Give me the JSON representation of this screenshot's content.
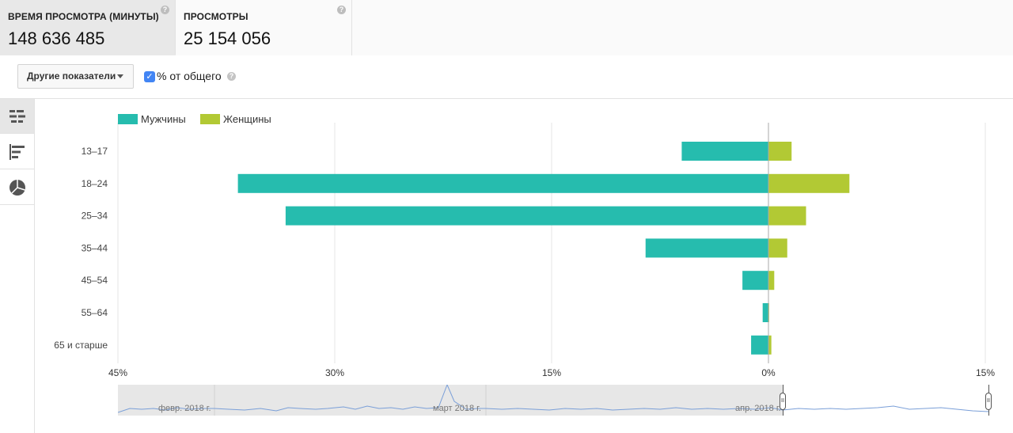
{
  "metrics": [
    {
      "label": "ВРЕМЯ ПРОСМОТРА (МИНУТЫ)",
      "value": "148 636 485",
      "help": "?"
    },
    {
      "label": "ПРОСМОТРЫ",
      "value": "25 154 056",
      "help": "?"
    }
  ],
  "toolbar": {
    "dropdown_label": "Другие показатели",
    "percent_checkbox_checked": true,
    "percent_label": "% от общего",
    "help": "?"
  },
  "switcher": {
    "items": [
      {
        "icon": "population-pyramid-icon",
        "active": true
      },
      {
        "icon": "horizontal-bar-icon",
        "active": false
      },
      {
        "icon": "pie-chart-icon",
        "active": false
      }
    ]
  },
  "colors": {
    "male": "#26bcae",
    "female": "#b2c934",
    "accent": "#4285f4"
  },
  "chart_data": {
    "type": "bar",
    "orientation": "horizontal",
    "categories": [
      "13–17",
      "18–24",
      "25–34",
      "35–44",
      "45–54",
      "55–64",
      "65 и старше"
    ],
    "series": [
      {
        "name": "Мужчины",
        "color": "#26bcae",
        "values": [
          -6.0,
          -36.7,
          -33.4,
          -8.5,
          -1.8,
          -0.4,
          -1.2
        ]
      },
      {
        "name": "Женщины",
        "color": "#b2c934",
        "values": [
          1.6,
          5.6,
          2.6,
          1.3,
          0.4,
          0.05,
          0.2
        ]
      }
    ],
    "xlim": [
      -45,
      15
    ],
    "xticks": [
      -45,
      -30,
      -15,
      0,
      15
    ],
    "xtick_labels": [
      "45%",
      "30%",
      "15%",
      "0%",
      "15%"
    ],
    "grid": true,
    "legend": "top-left",
    "title": "",
    "xlabel": "",
    "ylabel": ""
  },
  "timeline": {
    "labels": [
      "февр. 2018 г.",
      "март 2018 г.",
      "апр. 2018 г."
    ],
    "handle_glyph": "II"
  }
}
